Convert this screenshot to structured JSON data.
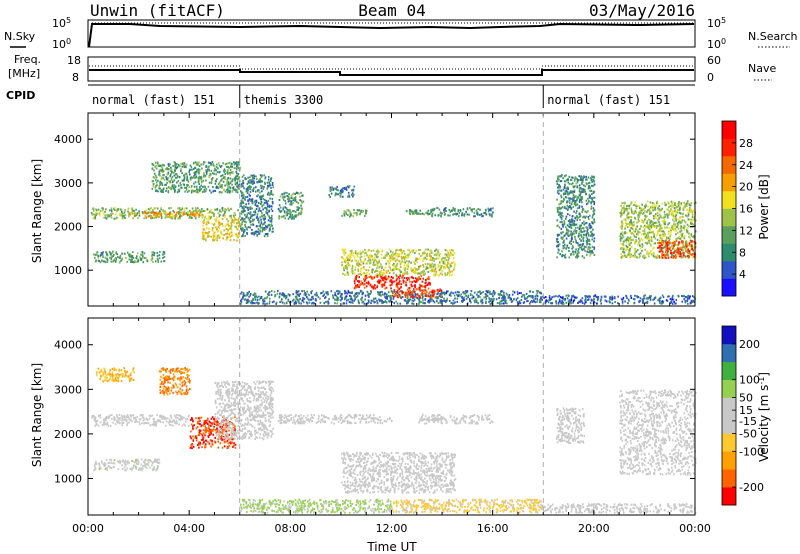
{
  "header": {
    "station": "Unwin (fitACF)",
    "beam": "Beam 04",
    "date": "03/May/2016"
  },
  "side_labels": {
    "nsky": "N.Sky",
    "nsearch": "N.Search",
    "freq_line1": "Freq.",
    "freq_line2": "[MHz]",
    "nave": "Nave",
    "cpid": "CPID"
  },
  "noise_axis": {
    "top": "10^5",
    "bottom": "10^0"
  },
  "freq_axis": {
    "left_ticks": [
      "18",
      "8"
    ],
    "right_ticks": [
      "60",
      "0"
    ]
  },
  "cpid_segments": [
    {
      "label": "normal (fast) 151",
      "start_h": 0,
      "end_h": 6
    },
    {
      "label": "themis 3300",
      "start_h": 6,
      "end_h": 18
    },
    {
      "label": "normal (fast) 151",
      "start_h": 18,
      "end_h": 24
    }
  ],
  "colors": {
    "power_scale": [
      "#1a10ff",
      "#2f55c8",
      "#2e8c6e",
      "#5aa05a",
      "#9ec24a",
      "#f0e020",
      "#f5a000",
      "#f56a00",
      "#ff2000",
      "#ff0000"
    ],
    "velocity_scale": [
      "#ff0000",
      "#ff6400",
      "#ffa000",
      "#ffc830",
      "#c8c8c8",
      "#c8c8c8",
      "#96d050",
      "#3fb03f",
      "#3070b0",
      "#1010c0"
    ]
  },
  "chart_data": [
    {
      "type": "heatmap",
      "name": "power",
      "xlabel": "Time UT",
      "ylabel": "Slant Range [km]",
      "x_range_hours": [
        0,
        24
      ],
      "ylim": [
        180,
        4600
      ],
      "y_ticks": [
        1000,
        2000,
        3000,
        4000
      ],
      "colorbar_label": "Power [dB]",
      "colorbar_range": [
        0,
        32
      ],
      "colorbar_ticks": [
        4,
        8,
        12,
        16,
        20,
        24,
        28
      ],
      "regions": [
        {
          "t0": 0.1,
          "t1": 6.0,
          "r0": 2200,
          "r1": 2450,
          "value": 13
        },
        {
          "t0": 1.5,
          "t1": 4.5,
          "r0": 2250,
          "r1": 2350,
          "value": 22
        },
        {
          "t0": 4.5,
          "t1": 6.0,
          "r0": 1700,
          "r1": 2200,
          "value": 18
        },
        {
          "t0": 2.5,
          "t1": 6.0,
          "r0": 2800,
          "r1": 3500,
          "value": 10
        },
        {
          "t0": 0.2,
          "t1": 3.0,
          "r0": 1200,
          "r1": 1450,
          "value": 10
        },
        {
          "t0": 6.0,
          "t1": 7.3,
          "r0": 1800,
          "r1": 3200,
          "value": 8
        },
        {
          "t0": 7.5,
          "t1": 8.5,
          "r0": 2200,
          "r1": 2800,
          "value": 10
        },
        {
          "t0": 9.5,
          "t1": 10.5,
          "r0": 2700,
          "r1": 2950,
          "value": 8
        },
        {
          "t0": 10.0,
          "t1": 11.0,
          "r0": 2250,
          "r1": 2400,
          "value": 12
        },
        {
          "t0": 12.5,
          "t1": 13.5,
          "r0": 2300,
          "r1": 2400,
          "value": 10
        },
        {
          "t0": 13.5,
          "t1": 16.0,
          "r0": 2250,
          "r1": 2450,
          "value": 9
        },
        {
          "t0": 10.0,
          "t1": 14.5,
          "r0": 900,
          "r1": 1500,
          "value": 16
        },
        {
          "t0": 10.5,
          "t1": 13.5,
          "r0": 600,
          "r1": 900,
          "value": 28
        },
        {
          "t0": 6.0,
          "t1": 18.0,
          "r0": 250,
          "r1": 550,
          "value": 7
        },
        {
          "t0": 12.0,
          "t1": 14.0,
          "r0": 400,
          "r1": 600,
          "value": 26
        },
        {
          "t0": 18.5,
          "t1": 20.0,
          "r0": 1300,
          "r1": 3200,
          "value": 9
        },
        {
          "t0": 21.0,
          "t1": 24.0,
          "r0": 1300,
          "r1": 2600,
          "value": 14
        },
        {
          "t0": 22.5,
          "t1": 24.0,
          "r0": 1300,
          "r1": 1700,
          "value": 26
        },
        {
          "t0": 18.0,
          "t1": 24.0,
          "r0": 250,
          "r1": 450,
          "value": 6
        }
      ]
    },
    {
      "type": "heatmap",
      "name": "velocity",
      "xlabel": "Time UT",
      "ylabel": "Slant Range [km]",
      "x_range_hours": [
        0,
        24
      ],
      "x_tick_labels": [
        "00:00",
        "04:00",
        "08:00",
        "12:00",
        "16:00",
        "20:00",
        "00:00"
      ],
      "ylim": [
        180,
        4600
      ],
      "y_ticks": [
        1000,
        2000,
        3000,
        4000
      ],
      "colorbar_label": "Velocity [m s^-1]",
      "colorbar_range": [
        -250,
        250
      ],
      "colorbar_ticks": [
        -200,
        -100,
        -50,
        -15,
        15,
        50,
        100,
        200
      ],
      "regions": [
        {
          "t0": 0.1,
          "t1": 4.0,
          "r0": 2200,
          "r1": 2450,
          "value": 0
        },
        {
          "t0": 4.0,
          "t1": 5.8,
          "r0": 1700,
          "r1": 2400,
          "value": -200
        },
        {
          "t0": 0.3,
          "t1": 1.8,
          "r0": 3200,
          "r1": 3500,
          "value": -100
        },
        {
          "t0": 2.8,
          "t1": 4.0,
          "r0": 2900,
          "r1": 3500,
          "value": -150
        },
        {
          "t0": 0.2,
          "t1": 2.8,
          "r0": 1200,
          "r1": 1450,
          "value": 30
        },
        {
          "t0": 5.0,
          "t1": 7.3,
          "r0": 1900,
          "r1": 3200,
          "value": 0
        },
        {
          "t0": 7.5,
          "t1": 12.0,
          "r0": 2250,
          "r1": 2450,
          "value": 0
        },
        {
          "t0": 13.0,
          "t1": 16.0,
          "r0": 2250,
          "r1": 2450,
          "value": 0
        },
        {
          "t0": 10.0,
          "t1": 14.5,
          "r0": 700,
          "r1": 1600,
          "value": 0
        },
        {
          "t0": 6.0,
          "t1": 12.0,
          "r0": 250,
          "r1": 550,
          "value": 60
        },
        {
          "t0": 12.0,
          "t1": 18.0,
          "r0": 250,
          "r1": 550,
          "value": -60
        },
        {
          "t0": 18.5,
          "t1": 19.6,
          "r0": 1800,
          "r1": 2600,
          "value": 0
        },
        {
          "t0": 21.0,
          "t1": 24.0,
          "r0": 1100,
          "r1": 3000,
          "value": 0
        },
        {
          "t0": 18.0,
          "t1": 24.0,
          "r0": 250,
          "r1": 450,
          "value": 0
        }
      ]
    }
  ]
}
